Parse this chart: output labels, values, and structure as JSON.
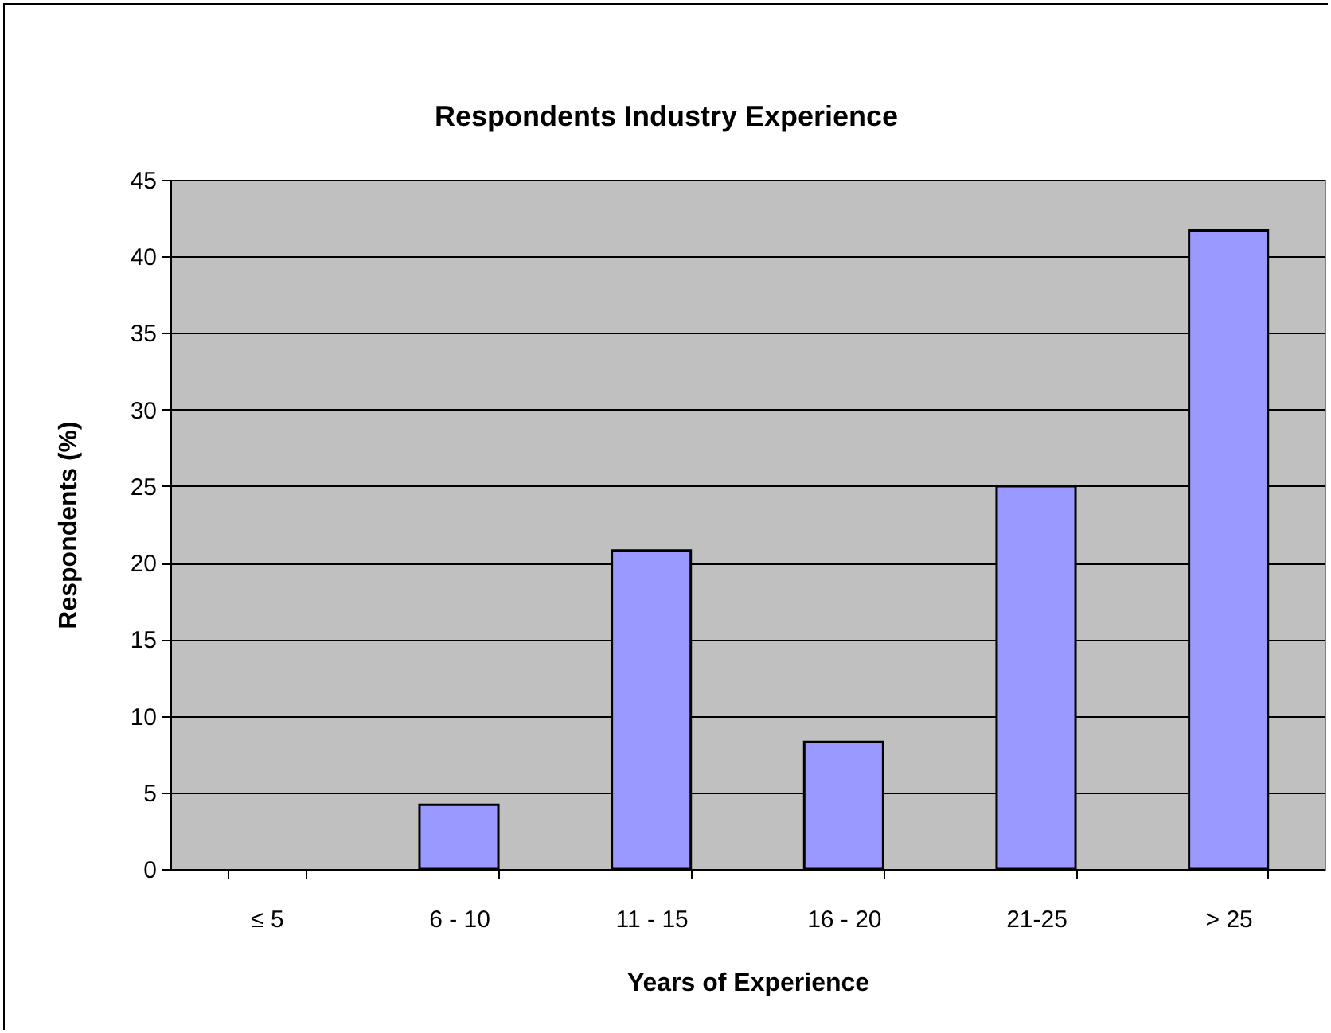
{
  "chart_data": {
    "type": "bar",
    "title": "Respondents Industry Experience",
    "xlabel": "Years of Experience",
    "ylabel": "Respondents (%)",
    "categories": [
      "≤ 5",
      "6 - 10",
      "11 - 15",
      "16 - 20",
      "21-25",
      "> 25"
    ],
    "values": [
      0,
      4.2,
      20.8,
      8.3,
      25,
      41.7
    ],
    "color": "#9999ff",
    "ylim": [
      0,
      45
    ],
    "yticks": [
      0,
      5,
      10,
      15,
      20,
      25,
      30,
      35,
      40,
      45
    ],
    "grid": "y"
  }
}
